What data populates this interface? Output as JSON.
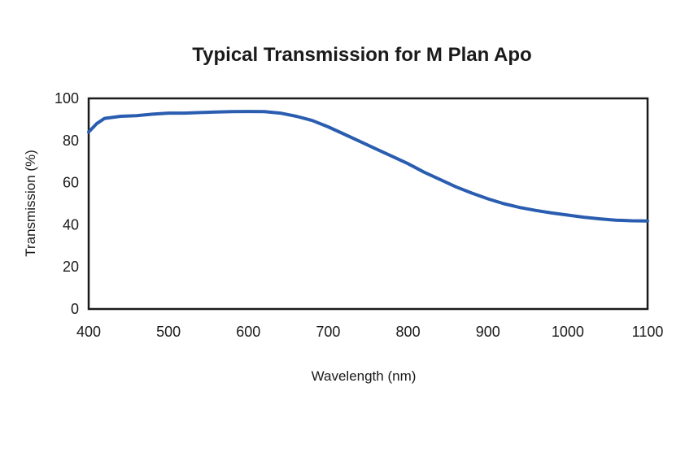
{
  "chart_data": {
    "type": "line",
    "title": "Typical Transmission for M Plan Apo",
    "xlabel": "Wavelength (nm)",
    "ylabel": "Transmission (%)",
    "xlim": [
      400,
      1100
    ],
    "ylim": [
      0,
      100
    ],
    "xticks": [
      400,
      500,
      600,
      700,
      800,
      900,
      1000,
      1100
    ],
    "yticks": [
      0,
      20,
      40,
      60,
      80,
      100
    ],
    "grid": false,
    "line_color": "#2a5db0",
    "series": [
      {
        "x": [
          400,
          410,
          420,
          440,
          460,
          480,
          500,
          520,
          540,
          560,
          580,
          600,
          620,
          640,
          660,
          680,
          700,
          720,
          740,
          760,
          780,
          800,
          820,
          840,
          860,
          880,
          900,
          920,
          940,
          960,
          980,
          1000,
          1020,
          1040,
          1060,
          1080,
          1100
        ],
        "y": [
          84,
          88,
          90.5,
          91.5,
          91.8,
          92.5,
          93,
          93,
          93.3,
          93.5,
          93.7,
          93.8,
          93.7,
          93,
          91.5,
          89.5,
          86.5,
          83,
          79.5,
          76,
          72.5,
          69,
          65,
          61.5,
          58,
          55,
          52.3,
          50,
          48.2,
          46.8,
          45.6,
          44.6,
          43.6,
          42.8,
          42.2,
          41.9,
          41.8
        ]
      }
    ]
  }
}
